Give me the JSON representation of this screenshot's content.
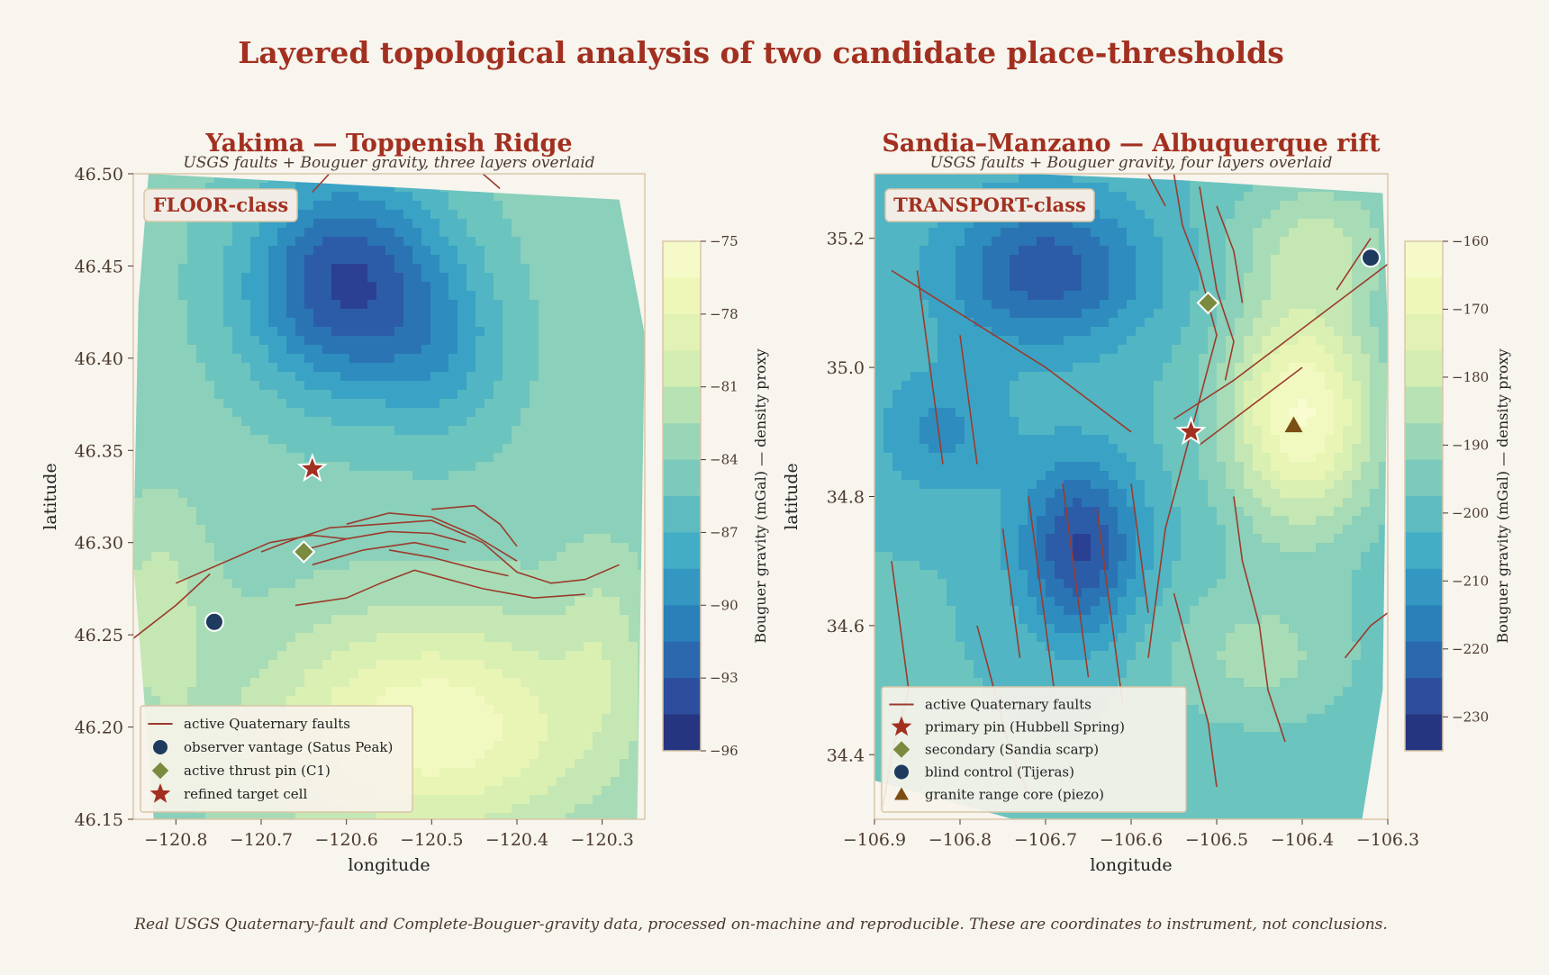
{
  "title": "Layered topological analysis of two candidate place-thresholds",
  "footer": "Real USGS Quaternary-fault and Complete-Bouguer-gravity data, processed on-machine and reproducible. These are coordinates to instrument, not conclusions.",
  "colors": {
    "title": "#a23020",
    "fault": "#9b3b2c",
    "text": "#4a3a2e",
    "frame": "#d9c6a8",
    "background": "#f8f4ee"
  },
  "panels": [
    {
      "id": "yakima",
      "title": "Yakima — Toppenish Ridge",
      "subtitle": "USGS faults + Bouguer gravity, three layers overlaid",
      "badge": "FLOOR-class",
      "xlabel": "longitude",
      "ylabel": "latitude",
      "xlim": [
        -120.85,
        -120.25
      ],
      "ylim": [
        46.15,
        46.5
      ],
      "xticks": [
        "−120.8",
        "−120.7",
        "−120.6",
        "−120.5",
        "−120.4",
        "−120.3"
      ],
      "xtick_values": [
        -120.8,
        -120.7,
        -120.6,
        -120.5,
        -120.4,
        -120.3
      ],
      "yticks": [
        "46.15",
        "46.20",
        "46.25",
        "46.30",
        "46.35",
        "46.40",
        "46.45",
        "46.50"
      ],
      "ytick_values": [
        46.15,
        46.2,
        46.25,
        46.3,
        46.35,
        46.4,
        46.45,
        46.5
      ],
      "colorbar": {
        "label": "Bouguer gravity (mGal) — density proxy",
        "min": -96,
        "max": -75,
        "ticks": [
          "−75",
          "−78",
          "−81",
          "−84",
          "−87",
          "−90",
          "−93",
          "−96"
        ],
        "tick_values": [
          -75,
          -78,
          -81,
          -84,
          -87,
          -90,
          -93,
          -96
        ]
      },
      "gravity_field": {
        "base": -84,
        "sources": [
          {
            "lon": -120.6,
            "lat": 46.44,
            "amp": -10,
            "slon": 0.12,
            "slat": 0.06
          },
          {
            "lon": -120.48,
            "lat": 46.4,
            "amp": -3,
            "slon": 0.08,
            "slat": 0.05
          },
          {
            "lon": -120.5,
            "lat": 46.2,
            "amp": 8,
            "slon": 0.2,
            "slat": 0.06
          },
          {
            "lon": -120.82,
            "lat": 46.26,
            "amp": 3,
            "slon": 0.06,
            "slat": 0.06
          },
          {
            "lon": -120.3,
            "lat": 46.25,
            "amp": 2,
            "slon": 0.05,
            "slat": 0.05
          }
        ]
      },
      "faults": [
        [
          [
            -120.85,
            46.248
          ],
          [
            -120.8,
            46.266
          ],
          [
            -120.76,
            46.283
          ]
        ],
        [
          [
            -120.8,
            46.278
          ],
          [
            -120.74,
            46.29
          ],
          [
            -120.69,
            46.3
          ],
          [
            -120.64,
            46.304
          ],
          [
            -120.6,
            46.302
          ]
        ],
        [
          [
            -120.7,
            46.295
          ],
          [
            -120.66,
            46.302
          ],
          [
            -120.62,
            46.308
          ],
          [
            -120.56,
            46.31
          ],
          [
            -120.5,
            46.312
          ],
          [
            -120.44,
            46.3
          ],
          [
            -120.4,
            46.284
          ],
          [
            -120.36,
            46.278
          ],
          [
            -120.32,
            46.28
          ],
          [
            -120.28,
            46.288
          ]
        ],
        [
          [
            -120.65,
            46.296
          ],
          [
            -120.6,
            46.302
          ],
          [
            -120.55,
            46.306
          ],
          [
            -120.5,
            46.305
          ],
          [
            -120.46,
            46.3
          ]
        ],
        [
          [
            -120.6,
            46.31
          ],
          [
            -120.55,
            46.316
          ],
          [
            -120.5,
            46.314
          ],
          [
            -120.45,
            46.304
          ],
          [
            -120.4,
            46.29
          ]
        ],
        [
          [
            -120.64,
            46.288
          ],
          [
            -120.58,
            46.296
          ],
          [
            -120.52,
            46.3
          ],
          [
            -120.48,
            46.296
          ]
        ],
        [
          [
            -120.66,
            46.266
          ],
          [
            -120.6,
            46.27
          ],
          [
            -120.56,
            46.278
          ],
          [
            -120.52,
            46.285
          ],
          [
            -120.48,
            46.28
          ],
          [
            -120.44,
            46.275
          ],
          [
            -120.38,
            46.27
          ],
          [
            -120.32,
            46.272
          ]
        ],
        [
          [
            -120.5,
            46.318
          ],
          [
            -120.45,
            46.32
          ],
          [
            -120.42,
            46.31
          ],
          [
            -120.4,
            46.298
          ]
        ],
        [
          [
            -120.55,
            46.296
          ],
          [
            -120.5,
            46.292
          ],
          [
            -120.45,
            46.286
          ],
          [
            -120.41,
            46.282
          ]
        ],
        [
          [
            -120.62,
            46.5
          ],
          [
            -120.64,
            46.49
          ]
        ],
        [
          [
            -120.44,
            46.5
          ],
          [
            -120.42,
            46.492
          ]
        ]
      ],
      "markers": [
        {
          "label": "observer vantage (Satus Peak)",
          "shape": "circle",
          "color": "#1f3a5f",
          "lon": -120.755,
          "lat": 46.257
        },
        {
          "label": "active thrust pin (C1)",
          "shape": "diamond",
          "color": "#7a8a3e",
          "lon": -120.65,
          "lat": 46.295
        },
        {
          "label": "refined target cell",
          "shape": "star",
          "color": "#a23020",
          "lon": -120.64,
          "lat": 46.34
        }
      ],
      "legend": [
        {
          "label": "active Quaternary faults",
          "shape": "line",
          "color": "#9b3b2c"
        },
        {
          "label": "observer vantage (Satus Peak)",
          "shape": "circle",
          "color": "#1f3a5f"
        },
        {
          "label": "active thrust pin (C1)",
          "shape": "diamond",
          "color": "#7a8a3e"
        },
        {
          "label": "refined target cell",
          "shape": "star",
          "color": "#a23020"
        }
      ],
      "legend_position": "lower-left"
    },
    {
      "id": "sandia",
      "title": "Sandia–Manzano — Albuquerque rift",
      "subtitle": "USGS faults + Bouguer gravity, four layers overlaid",
      "badge": "TRANSPORT-class",
      "xlabel": "longitude",
      "ylabel": "latitude",
      "xlim": [
        -106.9,
        -106.3
      ],
      "ylim": [
        34.3,
        35.3
      ],
      "xticks": [
        "−106.9",
        "−106.8",
        "−106.7",
        "−106.6",
        "−106.5",
        "−106.4",
        "−106.3"
      ],
      "xtick_values": [
        -106.9,
        -106.8,
        -106.7,
        -106.6,
        -106.5,
        -106.4,
        -106.3
      ],
      "yticks": [
        "34.4",
        "34.6",
        "34.8",
        "35.0",
        "35.2"
      ],
      "ytick_values": [
        34.4,
        34.6,
        34.8,
        35.0,
        35.2
      ],
      "colorbar": {
        "label": "Bouguer gravity (mGal) — density proxy",
        "min": -235,
        "max": -160,
        "ticks": [
          "−160",
          "−170",
          "−180",
          "−190",
          "−200",
          "−210",
          "−220",
          "−230"
        ],
        "tick_values": [
          -160,
          -170,
          -180,
          -190,
          -200,
          -210,
          -220,
          -230
        ]
      },
      "gravity_field": {
        "base": -200,
        "sources": [
          {
            "lon": -106.7,
            "lat": 35.15,
            "amp": -25,
            "slon": 0.12,
            "slat": 0.12
          },
          {
            "lon": -106.66,
            "lat": 34.72,
            "amp": -28,
            "slon": 0.07,
            "slat": 0.14
          },
          {
            "lon": -106.82,
            "lat": 34.9,
            "amp": -12,
            "slon": 0.08,
            "slat": 0.1
          },
          {
            "lon": -106.4,
            "lat": 34.93,
            "amp": 38,
            "slon": 0.09,
            "slat": 0.18
          },
          {
            "lon": -106.38,
            "lat": 35.2,
            "amp": 15,
            "slon": 0.1,
            "slat": 0.1
          },
          {
            "lon": -106.45,
            "lat": 34.55,
            "amp": 12,
            "slon": 0.12,
            "slat": 0.12
          }
        ]
      },
      "faults": [
        [
          [
            -106.55,
            35.3
          ],
          [
            -106.54,
            35.22
          ],
          [
            -106.52,
            35.15
          ],
          [
            -106.5,
            35.05
          ],
          [
            -106.52,
            34.95
          ],
          [
            -106.54,
            34.85
          ],
          [
            -106.56,
            34.75
          ],
          [
            -106.57,
            34.65
          ],
          [
            -106.58,
            34.55
          ]
        ],
        [
          [
            -106.52,
            35.28
          ],
          [
            -106.51,
            35.2
          ],
          [
            -106.5,
            35.12
          ],
          [
            -106.48,
            35.04
          ],
          [
            -106.49,
            34.98
          ]
        ],
        [
          [
            -106.5,
            35.25
          ],
          [
            -106.48,
            35.18
          ],
          [
            -106.47,
            35.1
          ]
        ],
        [
          [
            -106.55,
            34.92
          ],
          [
            -106.48,
            34.98
          ],
          [
            -106.42,
            35.04
          ],
          [
            -106.36,
            35.1
          ],
          [
            -106.3,
            35.16
          ]
        ],
        [
          [
            -106.52,
            34.88
          ],
          [
            -106.46,
            34.94
          ],
          [
            -106.4,
            35.0
          ]
        ],
        [
          [
            -106.48,
            34.8
          ],
          [
            -106.47,
            34.7
          ],
          [
            -106.45,
            34.6
          ],
          [
            -106.44,
            34.5
          ],
          [
            -106.42,
            34.42
          ]
        ],
        [
          [
            -106.36,
            35.12
          ],
          [
            -106.34,
            35.16
          ],
          [
            -106.32,
            35.2
          ]
        ],
        [
          [
            -106.6,
            34.9
          ],
          [
            -106.65,
            34.95
          ],
          [
            -106.7,
            35.0
          ],
          [
            -106.76,
            35.05
          ],
          [
            -106.82,
            35.1
          ],
          [
            -106.88,
            35.15
          ]
        ],
        [
          [
            -106.72,
            34.8
          ],
          [
            -106.71,
            34.7
          ],
          [
            -106.7,
            34.6
          ],
          [
            -106.69,
            34.5
          ]
        ],
        [
          [
            -106.68,
            34.82
          ],
          [
            -106.67,
            34.72
          ],
          [
            -106.66,
            34.62
          ],
          [
            -106.65,
            34.52
          ]
        ],
        [
          [
            -106.64,
            34.78
          ],
          [
            -106.63,
            34.68
          ],
          [
            -106.62,
            34.58
          ],
          [
            -106.61,
            34.48
          ]
        ],
        [
          [
            -106.75,
            34.75
          ],
          [
            -106.74,
            34.65
          ],
          [
            -106.73,
            34.55
          ]
        ],
        [
          [
            -106.6,
            34.82
          ],
          [
            -106.59,
            34.72
          ],
          [
            -106.58,
            34.62
          ]
        ],
        [
          [
            -106.85,
            35.15
          ],
          [
            -106.84,
            35.05
          ],
          [
            -106.83,
            34.95
          ],
          [
            -106.82,
            34.85
          ]
        ],
        [
          [
            -106.8,
            35.05
          ],
          [
            -106.79,
            34.95
          ],
          [
            -106.78,
            34.85
          ]
        ],
        [
          [
            -106.88,
            34.7
          ],
          [
            -106.87,
            34.6
          ],
          [
            -106.86,
            34.5
          ],
          [
            -106.88,
            34.4
          ],
          [
            -106.89,
            34.32
          ]
        ],
        [
          [
            -106.78,
            34.6
          ],
          [
            -106.76,
            34.5
          ],
          [
            -106.74,
            34.4
          ],
          [
            -106.72,
            34.34
          ]
        ],
        [
          [
            -106.55,
            34.65
          ],
          [
            -106.53,
            34.55
          ],
          [
            -106.51,
            34.45
          ],
          [
            -106.5,
            34.35
          ]
        ],
        [
          [
            -106.35,
            34.55
          ],
          [
            -106.32,
            34.6
          ],
          [
            -106.3,
            34.62
          ]
        ],
        [
          [
            -106.58,
            35.3
          ],
          [
            -106.56,
            35.25
          ]
        ]
      ],
      "markers": [
        {
          "label": "primary pin (Hubbell Spring)",
          "shape": "star",
          "color": "#a23020",
          "lon": -106.53,
          "lat": 34.9
        },
        {
          "label": "secondary (Sandia scarp)",
          "shape": "diamond",
          "color": "#7a8a3e",
          "lon": -106.51,
          "lat": 35.1
        },
        {
          "label": "blind control (Tijeras)",
          "shape": "circle",
          "color": "#1f3a5f",
          "lon": -106.32,
          "lat": 35.17
        },
        {
          "label": "granite range core (piezo)",
          "shape": "triangle",
          "color": "#7a4e14",
          "lon": -106.41,
          "lat": 34.91
        }
      ],
      "legend": [
        {
          "label": "active Quaternary faults",
          "shape": "line",
          "color": "#9b3b2c"
        },
        {
          "label": "primary pin (Hubbell Spring)",
          "shape": "star",
          "color": "#a23020"
        },
        {
          "label": "secondary (Sandia scarp)",
          "shape": "diamond",
          "color": "#7a8a3e"
        },
        {
          "label": "blind control (Tijeras)",
          "shape": "circle",
          "color": "#1f3a5f"
        },
        {
          "label": "granite range core (piezo)",
          "shape": "triangle",
          "color": "#7a4e14"
        }
      ],
      "legend_position": "lower-left"
    }
  ]
}
